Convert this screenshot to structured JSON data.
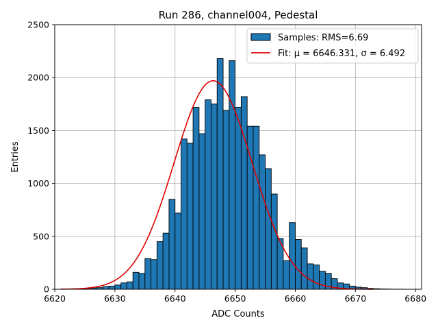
{
  "chart_data": {
    "type": "bar",
    "title": "Run 286, channel004, Pedestal",
    "xlabel": "ADC Counts",
    "ylabel": "Entries",
    "xlim": [
      6620,
      6681
    ],
    "ylim": [
      0,
      2500
    ],
    "xticks": [
      6620,
      6630,
      6640,
      6650,
      6660,
      6670,
      6680
    ],
    "yticks": [
      0,
      500,
      1000,
      1500,
      2000,
      2500
    ],
    "grid": true,
    "legend_position": "top-right",
    "bar_color": "#1f77b4",
    "fit_color": "#e00000",
    "histogram": {
      "name": "Samples: RMS=6.69",
      "bin_start": 6621,
      "bin_width": 1,
      "values": [
        2,
        3,
        5,
        6,
        8,
        12,
        15,
        25,
        30,
        40,
        60,
        70,
        160,
        150,
        290,
        280,
        450,
        530,
        850,
        720,
        1420,
        1380,
        1720,
        1470,
        1790,
        1750,
        2180,
        1690,
        2160,
        1720,
        1820,
        1540,
        1540,
        1270,
        1140,
        900,
        480,
        270,
        630,
        470,
        390,
        240,
        230,
        170,
        150,
        100,
        60,
        50,
        30,
        20,
        15,
        8,
        5,
        3,
        2,
        1,
        1
      ]
    },
    "fit": {
      "name": "Fit: μ = 6646.331, σ = 6.492",
      "mu": 6646.331,
      "sigma": 6.492,
      "amplitude": 1970,
      "x_range": [
        6621,
        6673
      ]
    }
  }
}
